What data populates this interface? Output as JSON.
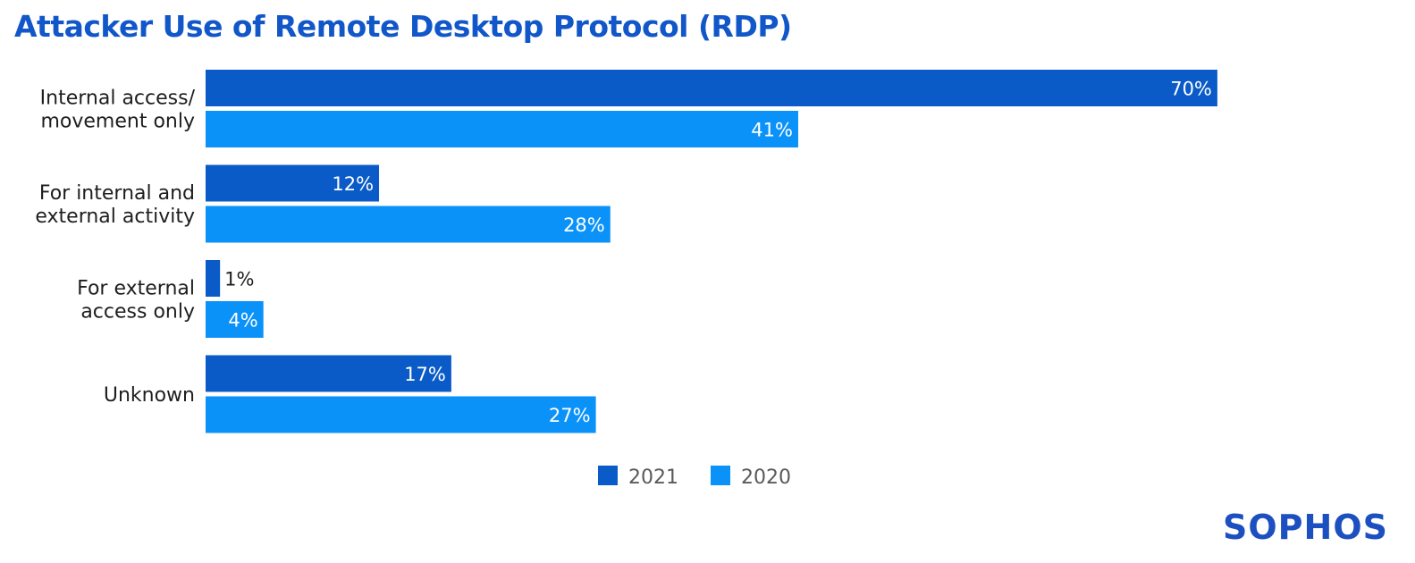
{
  "chart_data": {
    "type": "bar",
    "orientation": "horizontal",
    "title": "Attacker Use of Remote Desktop Protocol (RDP)",
    "categories": [
      [
        "Internal access/",
        "movement only"
      ],
      [
        "For internal and",
        "external activity"
      ],
      [
        "For external",
        "access only"
      ],
      [
        "Unknown"
      ]
    ],
    "series": [
      {
        "name": "2021",
        "values": [
          70,
          12,
          1,
          17
        ],
        "color": "#0a5bc8"
      },
      {
        "name": "2020",
        "values": [
          41,
          28,
          4,
          27
        ],
        "color": "#0a92f9"
      }
    ],
    "value_suffix": "%",
    "xlim": [
      0,
      100
    ],
    "grid": false,
    "legend_position": "bottom-center",
    "xlabel": "",
    "ylabel": ""
  },
  "brand": {
    "name": "SOPHOS"
  }
}
